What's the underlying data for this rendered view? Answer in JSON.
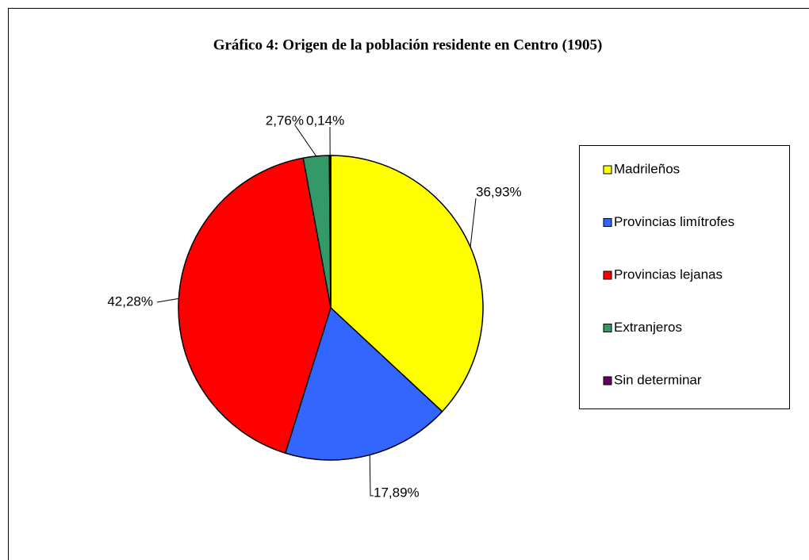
{
  "chart_data": {
    "type": "pie",
    "title": "Gráfico 4: Origen de la población residente en Centro (1905)",
    "categories": [
      "Madrileños",
      "Provincias limítrofes",
      "Provincias lejanas",
      "Extranjeros",
      "Sin determinar"
    ],
    "values": [
      36.93,
      17.89,
      42.28,
      2.76,
      0.14
    ],
    "value_labels": [
      "36,93%",
      "17,89%",
      "42,28%",
      "2,76%",
      "0,14%"
    ],
    "colors": [
      "#ffff00",
      "#3366ff",
      "#ff0000",
      "#339966",
      "#660066"
    ],
    "legend": "right"
  }
}
